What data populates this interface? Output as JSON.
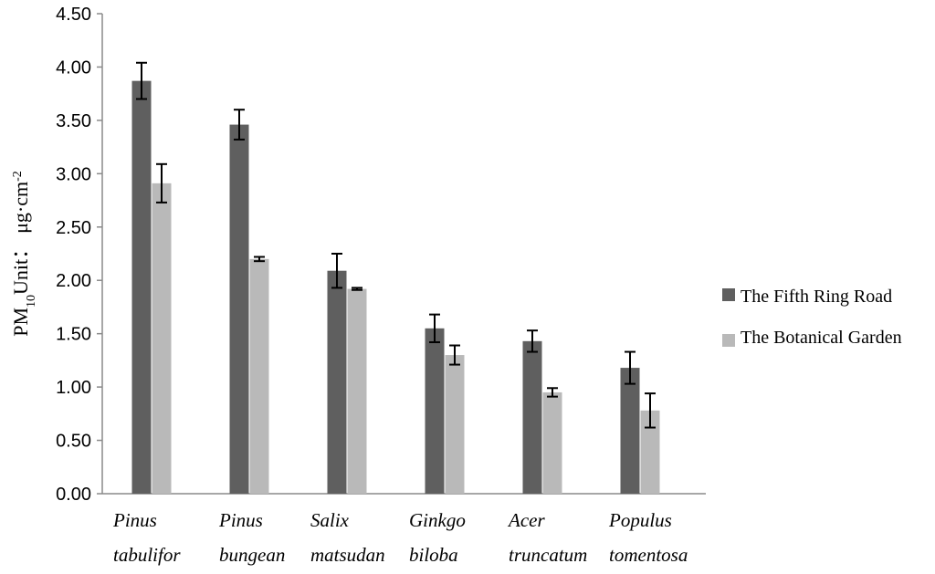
{
  "chart_data": {
    "type": "bar",
    "title": "",
    "xlabel": "",
    "ylabel": {
      "prefix": "PM",
      "subscript": "10",
      "label": "Unit：",
      "unit": "μg·cm",
      "superscript": "-2"
    },
    "ylim": [
      0,
      4.5
    ],
    "yticks": [
      "0.00",
      "0.50",
      "1.00",
      "1.50",
      "2.00",
      "2.50",
      "3.00",
      "3.50",
      "4.00",
      "4.50"
    ],
    "grid": false,
    "legend_position": "right",
    "categories": [
      [
        "Pinus",
        "tabulifor"
      ],
      [
        "Pinus",
        "bungean"
      ],
      [
        "Salix",
        "matsudan"
      ],
      [
        "Ginkgo",
        "biloba"
      ],
      [
        "Acer",
        "truncatum"
      ],
      [
        "Populus",
        "tomentosa"
      ]
    ],
    "series": [
      {
        "name": "The Fifth Ring Road",
        "color": "#5f5f5f",
        "values": [
          3.87,
          3.46,
          2.09,
          1.55,
          1.43,
          1.18
        ],
        "errors": [
          0.17,
          0.14,
          0.16,
          0.13,
          0.1,
          0.15
        ]
      },
      {
        "name": "The Botanical Garden",
        "color": "#b9b9b9",
        "values": [
          2.91,
          2.2,
          1.92,
          1.3,
          0.95,
          0.78
        ],
        "errors": [
          0.18,
          0.02,
          0.01,
          0.09,
          0.04,
          0.16
        ]
      }
    ]
  }
}
